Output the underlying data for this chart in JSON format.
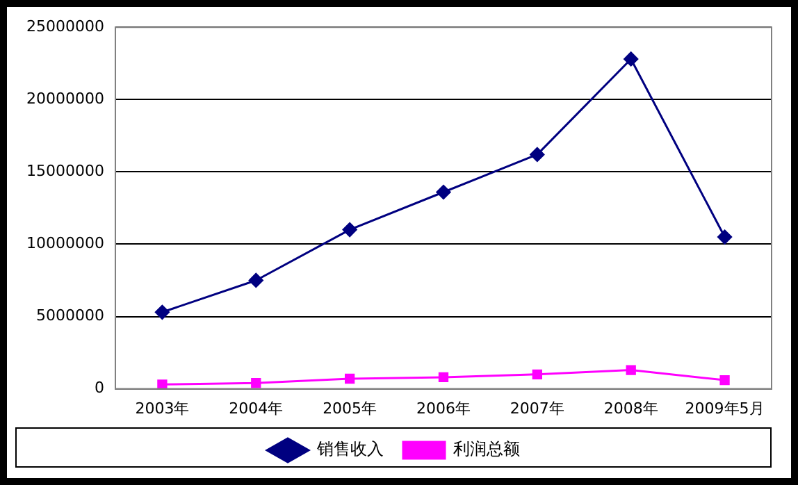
{
  "chart_data": {
    "type": "line",
    "categories": [
      "2003年",
      "2004年",
      "2005年",
      "2006年",
      "2007年",
      "2008年",
      "2009年5月"
    ],
    "series": [
      {
        "name": "销售收入",
        "color": "#000080",
        "marker": "diamond",
        "values": [
          5300000,
          7500000,
          11000000,
          13600000,
          16200000,
          22800000,
          10500000
        ]
      },
      {
        "name": "利润总额",
        "color": "#ff00ff",
        "marker": "square",
        "values": [
          300000,
          400000,
          700000,
          800000,
          1000000,
          1300000,
          600000
        ]
      }
    ],
    "ylim": [
      0,
      25000000
    ],
    "yticks": [
      0,
      5000000,
      10000000,
      15000000,
      20000000,
      25000000
    ],
    "grid": "y",
    "legend": "bottom"
  }
}
